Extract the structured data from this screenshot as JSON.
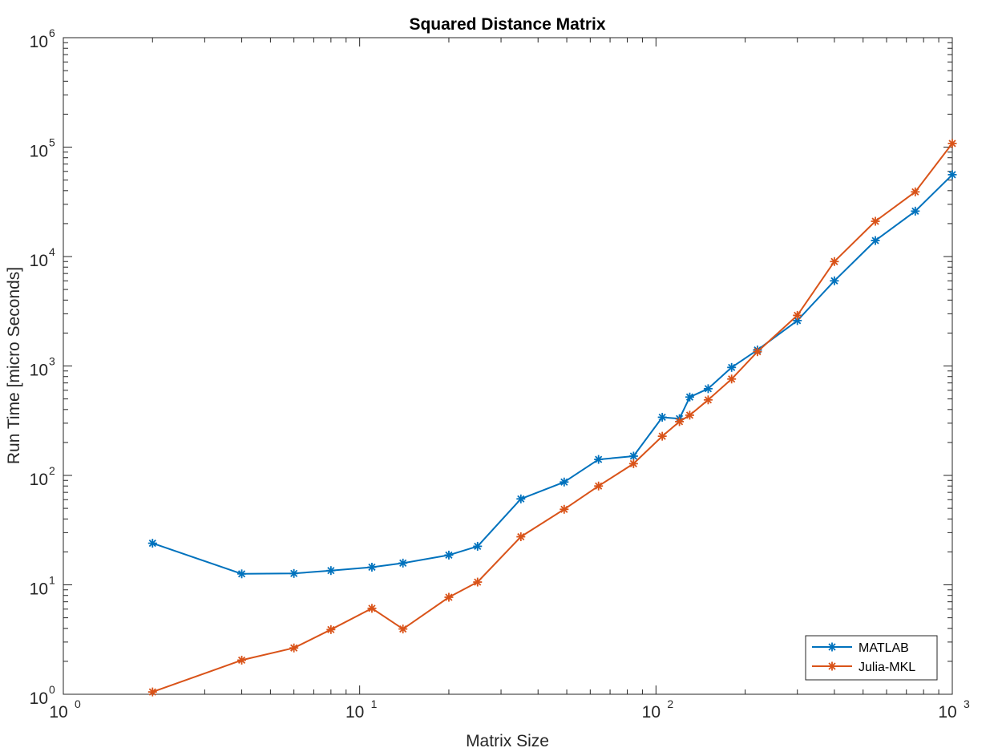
{
  "chart_data": {
    "type": "line",
    "title": "Squared Distance Matrix",
    "xlabel": "Matrix Size",
    "ylabel": "Run Time  [micro Seconds]",
    "x_scale": "log",
    "y_scale": "log",
    "xlim": [
      1,
      1000
    ],
    "ylim": [
      1,
      1000000
    ],
    "x_ticks": [
      {
        "base": "10",
        "exp": "0",
        "value": 1
      },
      {
        "base": "10",
        "exp": "1",
        "value": 10
      },
      {
        "base": "10",
        "exp": "2",
        "value": 100
      },
      {
        "base": "10",
        "exp": "3",
        "value": 1000
      }
    ],
    "y_ticks": [
      {
        "base": "10",
        "exp": "0",
        "value": 1
      },
      {
        "base": "10",
        "exp": "1",
        "value": 10
      },
      {
        "base": "10",
        "exp": "2",
        "value": 100
      },
      {
        "base": "10",
        "exp": "3",
        "value": 1000
      },
      {
        "base": "10",
        "exp": "4",
        "value": 10000
      },
      {
        "base": "10",
        "exp": "5",
        "value": 100000
      },
      {
        "base": "10",
        "exp": "6",
        "value": 1000000
      }
    ],
    "grid": false,
    "legend_position": "bottom-right",
    "marker": "asterisk",
    "series": [
      {
        "name": "MATLAB",
        "color": "#0072BD",
        "x": [
          2,
          4,
          6,
          8,
          11,
          14,
          20,
          25,
          35,
          49,
          64,
          84,
          105,
          120,
          130,
          150,
          180,
          220,
          300,
          400,
          550,
          750,
          1000
        ],
        "values": [
          24,
          12.6,
          12.7,
          13.5,
          14.5,
          15.8,
          18.7,
          22.5,
          61,
          87,
          140,
          150,
          340,
          330,
          520,
          620,
          970,
          1400,
          2600,
          6000,
          14000,
          26000,
          56000
        ]
      },
      {
        "name": "Julia-MKL",
        "color": "#D95319",
        "x": [
          2,
          4,
          6,
          8,
          11,
          14,
          20,
          25,
          35,
          49,
          64,
          84,
          105,
          120,
          130,
          150,
          180,
          220,
          300,
          400,
          550,
          750,
          1000
        ],
        "values": [
          1.05,
          2.05,
          2.65,
          3.9,
          6.1,
          3.95,
          7.7,
          10.6,
          27.5,
          49,
          80,
          128,
          228,
          310,
          355,
          490,
          760,
          1350,
          2900,
          9000,
          21000,
          39000,
          108000
        ]
      }
    ]
  }
}
